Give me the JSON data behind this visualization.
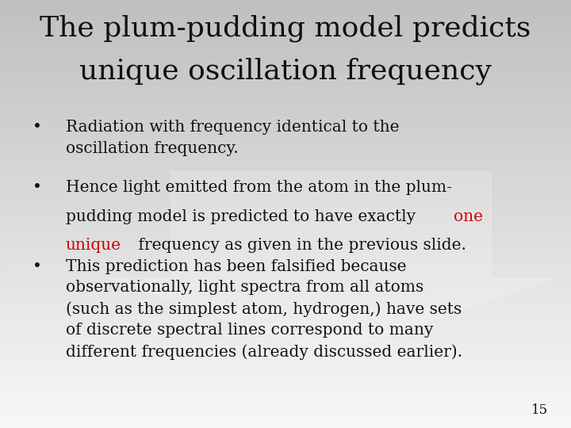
{
  "title_line1": "The plum-pudding model predicts",
  "title_line2": "unique oscillation frequency",
  "bullet1_text": "Radiation with frequency identical to the\noscillation frequency.",
  "bullet3_text": "This prediction has been falsified because\nobservationally, light spectra from all atoms\n(such as the simplest atom, hydrogen,) have sets\nof discrete spectral lines correspond to many\ndifferent frequencies (already discussed earlier).",
  "page_number": "15",
  "text_color": "#111111",
  "red_color": "#cc0000",
  "title_fontsize": 26,
  "body_fontsize": 14.5,
  "font_family": "serif",
  "bg_light": "#f5f5f5",
  "bg_dark": "#c8c8c8",
  "watermark_alpha": 0.18
}
